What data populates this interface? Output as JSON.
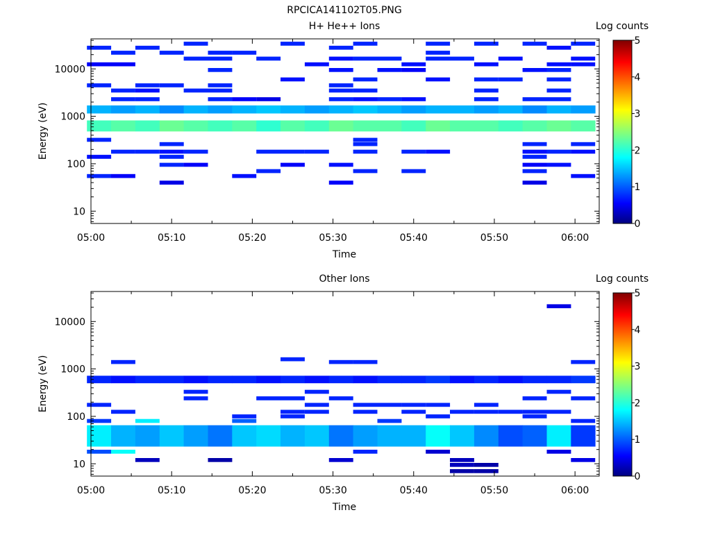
{
  "figure": {
    "title": "RPCICA141102T05.PNG"
  },
  "chart_data": [
    {
      "type": "heatmap",
      "title": "H+ He++ Ions",
      "xlabel": "Time",
      "ylabel": "Energy (eV)",
      "xtick_labels": [
        "05:00",
        "05:10",
        "05:20",
        "05:30",
        "05:40",
        "05:50",
        "06:00"
      ],
      "ytick_labels": [
        "10",
        "100",
        "1000",
        "10000"
      ],
      "x_range": [
        "05:00",
        "06:03"
      ],
      "y_range": [
        5.5,
        43000
      ],
      "y_scale": "log",
      "colorbar": {
        "label": "Log counts",
        "range": [
          0,
          5
        ],
        "tick_labels": [
          "0",
          "1",
          "2",
          "3",
          "4",
          "5"
        ],
        "colormap": "jet"
      },
      "time_bins": [
        "05:01",
        "05:04",
        "05:07",
        "05:10",
        "05:13",
        "05:16",
        "05:19",
        "05:22",
        "05:25",
        "05:28",
        "05:31",
        "05:34",
        "05:37",
        "05:40",
        "05:43",
        "05:46",
        "05:49",
        "05:52",
        "05:55",
        "05:58",
        "06:01"
      ],
      "bands": [
        {
          "e_low": 480,
          "e_high": 820,
          "values": [
            2.2,
            2.3,
            2.2,
            2.4,
            2.3,
            2.2,
            2.3,
            2.1,
            2.3,
            2.2,
            2.4,
            2.3,
            2.3,
            2.2,
            2.4,
            2.3,
            2.3,
            2.2,
            2.3,
            2.4,
            2.3
          ]
        },
        {
          "e_low": 1150,
          "e_high": 1700,
          "values": [
            1.5,
            1.4,
            1.5,
            1.3,
            1.5,
            1.4,
            1.5,
            1.6,
            1.5,
            1.4,
            1.5,
            1.6,
            1.5,
            1.4,
            1.5,
            1.5,
            1.4,
            1.5,
            1.3,
            1.5,
            1.4
          ]
        }
      ],
      "sparse_bins": [
        {
          "e": 40,
          "values": [
            0,
            0,
            0,
            0.5,
            0,
            0,
            0,
            0,
            0,
            0,
            0.6,
            0,
            0,
            0,
            0,
            0,
            0,
            0,
            0.5,
            0,
            0
          ]
        },
        {
          "e": 55,
          "values": [
            0.8,
            0.6,
            0,
            0,
            0,
            0,
            0.7,
            0,
            0,
            0,
            0,
            0,
            0,
            0,
            0,
            0,
            0,
            0,
            0,
            0,
            0.7
          ]
        },
        {
          "e": 70,
          "values": [
            0,
            0,
            0,
            0,
            0,
            0,
            0,
            0.8,
            0,
            0,
            0,
            0.8,
            0,
            0.8,
            0,
            0,
            0,
            0,
            0.8,
            0,
            0
          ]
        },
        {
          "e": 95,
          "values": [
            0,
            0,
            0,
            0.8,
            0.6,
            0,
            0,
            0,
            0.6,
            0,
            0.7,
            0,
            0,
            0,
            0,
            0,
            0,
            0,
            0.6,
            0.7,
            0
          ]
        },
        {
          "e": 140,
          "values": [
            0.7,
            0,
            0,
            0.8,
            0,
            0,
            0,
            0,
            0,
            0,
            0,
            0,
            0,
            0,
            0,
            0,
            0,
            0,
            0.8,
            0,
            0
          ]
        },
        {
          "e": 180,
          "values": [
            0,
            0.8,
            0.8,
            0.7,
            0.8,
            0,
            0,
            0.8,
            0.8,
            0.8,
            0,
            0.8,
            0,
            0.8,
            0.7,
            0,
            0,
            0,
            0.7,
            0.8,
            0.7
          ]
        },
        {
          "e": 260,
          "values": [
            0,
            0,
            0,
            0.8,
            0,
            0,
            0,
            0,
            0,
            0,
            0,
            0.8,
            0,
            0,
            0,
            0,
            0,
            0,
            0.8,
            0,
            0.8
          ]
        },
        {
          "e": 320,
          "values": [
            0.8,
            0,
            0,
            0,
            0,
            0,
            0,
            0,
            0,
            0,
            0,
            0.8,
            0,
            0,
            0,
            0,
            0,
            0,
            0,
            0,
            0
          ]
        },
        {
          "e": 2300,
          "values": [
            0,
            0.8,
            0.8,
            0,
            0,
            0.8,
            0.6,
            0.5,
            0,
            0,
            0.8,
            0.7,
            0.8,
            0.7,
            0,
            0,
            0.8,
            0,
            0.8,
            0.8,
            0
          ]
        },
        {
          "e": 3500,
          "values": [
            0,
            0.8,
            0.7,
            0,
            0.8,
            0.8,
            0,
            0,
            0,
            0,
            0.8,
            0.8,
            0,
            0,
            0,
            0,
            0.8,
            0,
            0,
            0.8,
            0
          ]
        },
        {
          "e": 4500,
          "values": [
            0.8,
            0,
            0.8,
            0.8,
            0,
            0.8,
            0,
            0,
            0,
            0,
            0.8,
            0,
            0,
            0,
            0,
            0,
            0,
            0,
            0,
            0,
            0
          ]
        },
        {
          "e": 6000,
          "values": [
            0,
            0,
            0,
            0,
            0,
            0,
            0,
            0,
            0.7,
            0,
            0,
            0.8,
            0,
            0,
            0.7,
            0,
            0.8,
            0.8,
            0,
            0.8,
            0
          ]
        },
        {
          "e": 9500,
          "values": [
            0,
            0,
            0,
            0,
            0,
            0.8,
            0,
            0,
            0,
            0,
            0.7,
            0,
            0.7,
            0.6,
            0,
            0,
            0,
            0,
            0.7,
            0.8,
            0
          ]
        },
        {
          "e": 12500,
          "values": [
            0.6,
            0.6,
            0,
            0,
            0,
            0,
            0,
            0,
            0,
            0.7,
            0,
            0,
            0,
            0.7,
            0,
            0,
            0.7,
            0,
            0,
            0.7,
            0.7
          ]
        },
        {
          "e": 16500,
          "values": [
            0,
            0,
            0,
            0,
            0.8,
            0.8,
            0,
            0.8,
            0,
            0,
            0.7,
            0.8,
            0.8,
            0,
            0.8,
            0.8,
            0,
            0.7,
            0,
            0,
            0.7
          ]
        },
        {
          "e": 22000,
          "values": [
            0,
            0.8,
            0,
            0.8,
            0,
            0.8,
            0.8,
            0,
            0,
            0,
            0,
            0,
            0,
            0,
            0.8,
            0,
            0,
            0,
            0,
            0,
            0
          ]
        },
        {
          "e": 28000,
          "values": [
            0.8,
            0,
            0.8,
            0,
            0,
            0,
            0,
            0,
            0,
            0,
            0.8,
            0,
            0,
            0,
            0,
            0,
            0,
            0,
            0,
            0.7,
            0
          ]
        },
        {
          "e": 34000,
          "values": [
            0,
            0,
            0,
            0,
            0.8,
            0,
            0,
            0,
            0.8,
            0,
            0,
            0.8,
            0,
            0,
            0.8,
            0,
            0.8,
            0,
            0.8,
            0,
            0.8
          ]
        }
      ]
    },
    {
      "type": "heatmap",
      "title": "Other Ions",
      "xlabel": "Time",
      "ylabel": "Energy (eV)",
      "xtick_labels": [
        "05:00",
        "05:10",
        "05:20",
        "05:30",
        "05:40",
        "05:50",
        "06:00"
      ],
      "ytick_labels": [
        "10",
        "100",
        "1000",
        "10000"
      ],
      "x_range": [
        "05:00",
        "06:03"
      ],
      "y_range": [
        5.5,
        43000
      ],
      "y_scale": "log",
      "colorbar": {
        "label": "Log counts",
        "range": [
          0,
          5
        ],
        "tick_labels": [
          "0",
          "1",
          "2",
          "3",
          "4",
          "5"
        ],
        "colormap": "jet"
      },
      "time_bins": [
        "05:01",
        "05:04",
        "05:07",
        "05:10",
        "05:13",
        "05:16",
        "05:19",
        "05:22",
        "05:25",
        "05:28",
        "05:31",
        "05:34",
        "05:37",
        "05:40",
        "05:43",
        "05:46",
        "05:49",
        "05:52",
        "05:55",
        "05:58",
        "06:01"
      ],
      "bands": [
        {
          "e_low": 500,
          "e_high": 720,
          "values": [
            0.8,
            0.7,
            0.8,
            0.8,
            0.7,
            0.8,
            0.8,
            0.7,
            0.8,
            0.7,
            0.8,
            0.7,
            0.8,
            0.8,
            0.9,
            0.7,
            0.8,
            0.7,
            0.8,
            0.8,
            0.9
          ]
        },
        {
          "e_low": 23,
          "e_high": 65,
          "values": [
            1.8,
            1.5,
            1.4,
            1.6,
            1.4,
            1.2,
            1.6,
            1.7,
            1.5,
            1.6,
            1.2,
            1.4,
            1.5,
            1.5,
            1.9,
            1.6,
            1.3,
            1.0,
            1.1,
            1.8,
            0.9
          ]
        }
      ],
      "sparse_bins": [
        {
          "e": 7,
          "values": [
            0,
            0,
            0,
            0,
            0,
            0,
            0,
            0,
            0,
            0,
            0,
            0,
            0,
            0,
            0,
            0.2,
            0.2,
            0,
            0,
            0,
            0
          ]
        },
        {
          "e": 9.5,
          "values": [
            0,
            0,
            0,
            0,
            0,
            0,
            0,
            0,
            0,
            0,
            0,
            0,
            0,
            0,
            0,
            0.3,
            0.2,
            0,
            0,
            0,
            0
          ]
        },
        {
          "e": 12,
          "values": [
            0,
            0,
            0.3,
            0,
            0,
            0.2,
            0,
            0,
            0,
            0,
            0.4,
            0,
            0,
            0,
            0,
            0.3,
            0,
            0,
            0,
            0,
            0.5
          ]
        },
        {
          "e": 18,
          "values": [
            1.0,
            1.9,
            0,
            0,
            0,
            0,
            0,
            0,
            0,
            0,
            0,
            0.8,
            0,
            0,
            0.4,
            0,
            0,
            0,
            0,
            0.5,
            0
          ]
        },
        {
          "e": 80,
          "values": [
            0.9,
            0,
            1.8,
            0,
            0,
            0,
            1.1,
            0,
            0,
            0,
            0,
            0,
            0.9,
            0,
            0,
            0,
            0,
            0,
            0,
            0,
            0.8
          ]
        },
        {
          "e": 100,
          "values": [
            0,
            0,
            0,
            0,
            0,
            0,
            0.8,
            0,
            0.8,
            0,
            0,
            0,
            0,
            0,
            0.8,
            0,
            0,
            0,
            0.8,
            0,
            0
          ]
        },
        {
          "e": 125,
          "values": [
            0,
            0.8,
            0,
            0,
            0,
            0,
            0,
            0,
            0.8,
            0.8,
            0,
            0.8,
            0,
            0.8,
            0,
            0.8,
            0.8,
            0.8,
            0.8,
            0.8,
            0
          ]
        },
        {
          "e": 175,
          "values": [
            0.8,
            0,
            0,
            0,
            0,
            0,
            0,
            0,
            0,
            0.8,
            0,
            0.8,
            0.8,
            0.8,
            0.8,
            0,
            0.8,
            0,
            0,
            0,
            0
          ]
        },
        {
          "e": 240,
          "values": [
            0,
            0,
            0,
            0,
            0.8,
            0,
            0,
            0.8,
            0.8,
            0,
            0.8,
            0,
            0,
            0,
            0,
            0,
            0,
            0,
            0.8,
            0,
            0.8
          ]
        },
        {
          "e": 330,
          "values": [
            0,
            0,
            0,
            0,
            0.8,
            0,
            0,
            0,
            0,
            0.8,
            0,
            0,
            0,
            0,
            0,
            0,
            0,
            0,
            0,
            0.8,
            0
          ]
        },
        {
          "e": 1400,
          "values": [
            0,
            0.8,
            0,
            0,
            0,
            0,
            0,
            0,
            0,
            0,
            0.8,
            0.8,
            0,
            0,
            0,
            0,
            0,
            0,
            0,
            0,
            0.8
          ]
        },
        {
          "e": 1600,
          "values": [
            0,
            0,
            0,
            0,
            0,
            0,
            0,
            0,
            0.8,
            0,
            0,
            0,
            0,
            0,
            0,
            0,
            0,
            0,
            0,
            0,
            0
          ]
        },
        {
          "e": 21000,
          "values": [
            0,
            0,
            0,
            0,
            0,
            0,
            0,
            0,
            0,
            0,
            0,
            0,
            0,
            0,
            0,
            0,
            0,
            0,
            0,
            0.5,
            0
          ]
        }
      ]
    }
  ]
}
